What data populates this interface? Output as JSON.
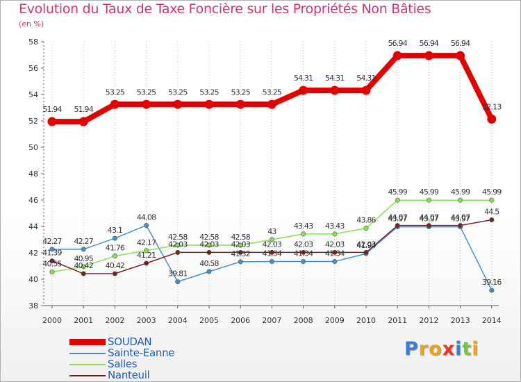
{
  "title": "Evolution du Taux de Taxe Foncière sur les Propriétés Non Bâties",
  "unit_label": "(en %)",
  "logo": {
    "text": "Proxiti",
    "letters": [
      "P",
      "r",
      "o",
      "x",
      "i",
      "t",
      "i"
    ],
    "colors": [
      "#3a7fd5",
      "#e8a317",
      "#e8a317",
      "#e23b2e",
      "#3a7fd5",
      "#7cc243",
      "#e8a317"
    ]
  },
  "chart_data": {
    "type": "line",
    "title": "Evolution du Taux de Taxe Foncière sur les Propriétés Non Bâties",
    "ylabel": "(en %)",
    "xlabel": "",
    "ylim": [
      38,
      58
    ],
    "yticks": [
      38,
      40,
      42,
      44,
      46,
      48,
      50,
      52,
      54,
      56,
      58
    ],
    "grid": "vertical dotted",
    "legend_position": "bottom-left",
    "categories": [
      "2000",
      "2001",
      "2002",
      "2003",
      "2004",
      "2005",
      "2006",
      "2007",
      "2008",
      "2009",
      "2010",
      "2011",
      "2012",
      "2013",
      "2014"
    ],
    "series": [
      {
        "name": "SOUDAN",
        "color": "#e00000",
        "values": [
          51.94,
          51.94,
          53.25,
          53.25,
          53.25,
          53.25,
          53.25,
          53.25,
          54.31,
          54.31,
          54.31,
          56.94,
          56.94,
          56.94,
          52.13
        ],
        "labels": [
          "51.94",
          "51.94",
          "53.25",
          "53.25",
          "53.25",
          "53.25",
          "53.25",
          "53.25",
          "54.31",
          "54.31",
          "54.31",
          "56.94",
          "56.94",
          "56.94",
          "52.13"
        ]
      },
      {
        "name": "Sainte-Eanne",
        "color": "#4a90c8",
        "values": [
          42.27,
          42.27,
          43.1,
          44.08,
          39.81,
          40.58,
          41.32,
          41.34,
          41.34,
          41.34,
          41.94,
          43.97,
          43.97,
          43.97,
          39.16
        ],
        "labels": [
          "42.27",
          "42.27",
          "43.1",
          "44.08",
          "39.81",
          "40.58",
          "41.32",
          "41.34",
          "41.34",
          "41.34",
          "41.94",
          "43.97",
          "43.97",
          "43.97",
          "39.16"
        ]
      },
      {
        "name": "Salles",
        "color": "#88dd55",
        "values": [
          40.55,
          40.95,
          41.76,
          42.17,
          42.58,
          42.58,
          42.58,
          43,
          43.43,
          43.43,
          43.86,
          45.99,
          45.99,
          45.99,
          45.99
        ],
        "labels": [
          "40.55",
          "40.95",
          "41.76",
          "42.17",
          "42.58",
          "42.58",
          "42.58",
          "43",
          "43.43",
          "43.43",
          "43.86",
          "45.99",
          "45.99",
          "45.99",
          "45.99"
        ]
      },
      {
        "name": "Nanteuil",
        "color": "#772222",
        "values": [
          41.39,
          40.42,
          40.42,
          41.21,
          42.03,
          42.03,
          42.03,
          42.03,
          42.03,
          42.03,
          42.03,
          44.07,
          44.07,
          44.07,
          44.5
        ],
        "labels": [
          "41.39",
          "40.42",
          "40.42",
          "41.21",
          "42.03",
          "42.03",
          "42.03",
          "42.03",
          "42.03",
          "42.03",
          "42.03",
          "44.07",
          "44.07",
          "44.07",
          "44.5"
        ]
      }
    ]
  }
}
